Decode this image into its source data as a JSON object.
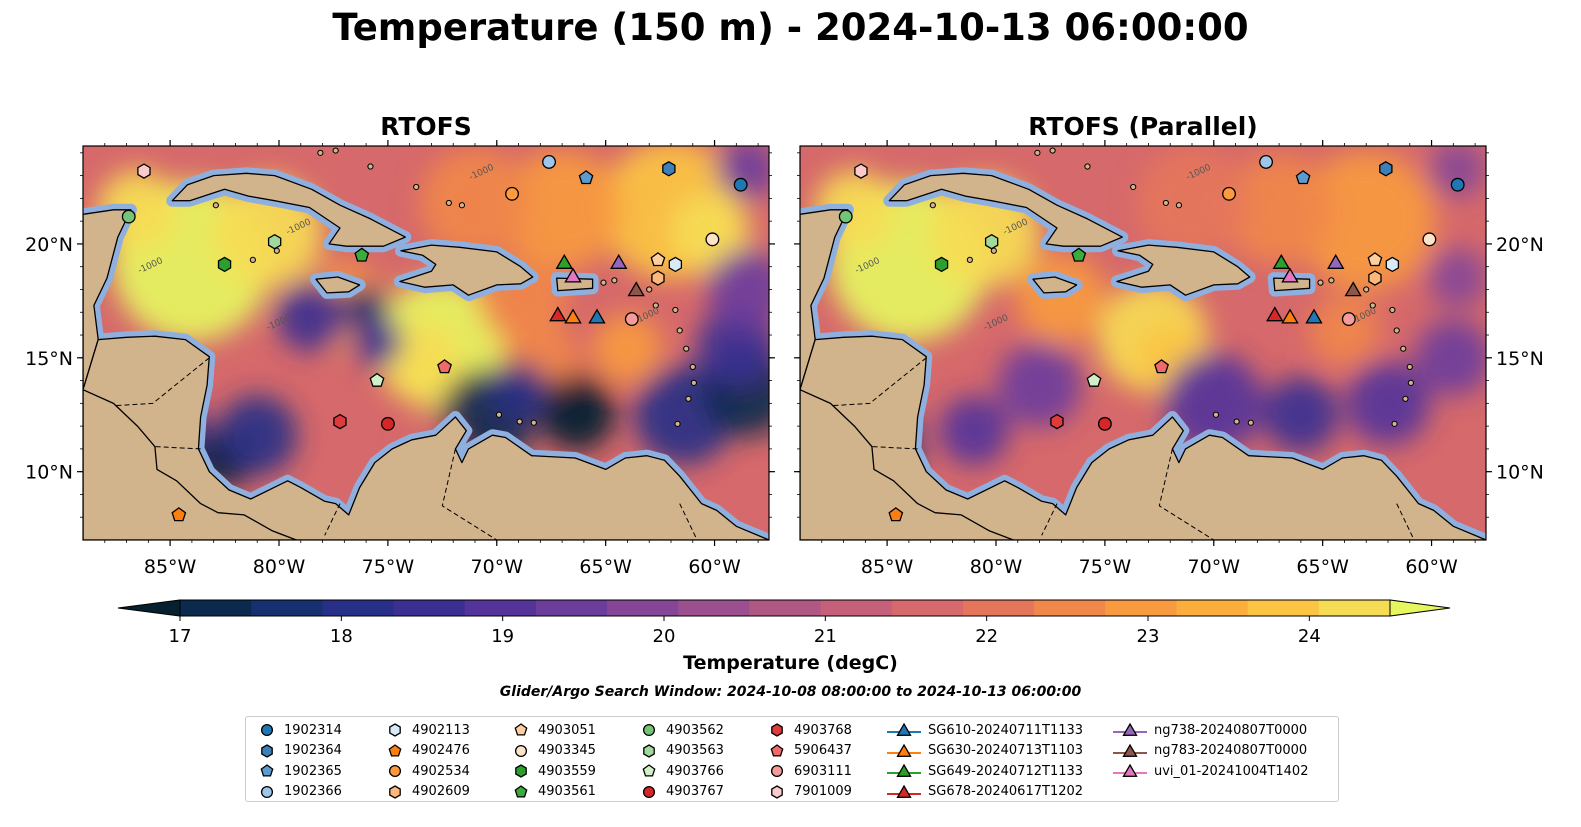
{
  "title": "Temperature (150 m) - 2024-10-13 06:00:00",
  "panels": [
    {
      "title": "RTOFS"
    },
    {
      "title": "RTOFS (Parallel)"
    }
  ],
  "map": {
    "lon_range": [
      -89,
      -57.5
    ],
    "lat_range": [
      7,
      24.3
    ],
    "lon_ticks": [
      "85°W",
      "80°W",
      "75°W",
      "70°W",
      "65°W",
      "60°W"
    ],
    "lon_tick_values": [
      -85,
      -80,
      -75,
      -70,
      -65,
      -60
    ],
    "lat_ticks": [
      "20°N",
      "15°N",
      "10°N"
    ],
    "lat_tick_values": [
      20,
      15,
      10
    ],
    "contour_label": "-1000",
    "land_color": "#d2b48c",
    "shelf_color": "#8fb0de"
  },
  "colorbar": {
    "label": "Temperature (degC)",
    "ticks": [
      "17",
      "18",
      "19",
      "20",
      "21",
      "22",
      "23",
      "24"
    ],
    "min": 17,
    "max": 24.5,
    "colors": [
      "#06202f",
      "#0b2a4e",
      "#17306f",
      "#272f86",
      "#3b2f92",
      "#55349a",
      "#6d3d9c",
      "#854697",
      "#9b4f8f",
      "#b05884",
      "#c4607a",
      "#d6696b",
      "#e5765b",
      "#f0874b",
      "#f79a40",
      "#fbae3c",
      "#fbc443",
      "#f6dc55",
      "#e6f65e"
    ]
  },
  "search_window": "Glider/Argo Search Window: 2024-10-08 08:00:00 to 2024-10-13 06:00:00",
  "legend": [
    {
      "label": "1902314",
      "marker": "circle",
      "color": "#1f77b4"
    },
    {
      "label": "1902364",
      "marker": "hexagon",
      "color": "#3d7fb8"
    },
    {
      "label": "1902365",
      "marker": "pentagon",
      "color": "#5b9bd0"
    },
    {
      "label": "1902366",
      "marker": "circle",
      "color": "#9ec6e8"
    },
    {
      "label": "4902113",
      "marker": "hexagon",
      "color": "#d8e9f7"
    },
    {
      "label": "4902476",
      "marker": "pentagon",
      "color": "#ff7f0e"
    },
    {
      "label": "4902534",
      "marker": "circle",
      "color": "#fd9a3c"
    },
    {
      "label": "4902609",
      "marker": "hexagon",
      "color": "#fdb77a"
    },
    {
      "label": "4903051",
      "marker": "pentagon",
      "color": "#fdcf9f"
    },
    {
      "label": "4903345",
      "marker": "circle",
      "color": "#fde3c8"
    },
    {
      "label": "4903559",
      "marker": "hexagon",
      "color": "#2ca02c"
    },
    {
      "label": "4903561",
      "marker": "pentagon",
      "color": "#3bab3b"
    },
    {
      "label": "4903562",
      "marker": "circle",
      "color": "#74c476"
    },
    {
      "label": "4903563",
      "marker": "hexagon",
      "color": "#a1d99b"
    },
    {
      "label": "4903766",
      "marker": "pentagon",
      "color": "#d0f0c8"
    },
    {
      "label": "4903767",
      "marker": "circle",
      "color": "#d62728"
    },
    {
      "label": "4903768",
      "marker": "hexagon",
      "color": "#e03b3c"
    },
    {
      "label": "5906437",
      "marker": "pentagon",
      "color": "#f06a6a"
    },
    {
      "label": "6903111",
      "marker": "circle",
      "color": "#f49b9b"
    },
    {
      "label": "7901009",
      "marker": "hexagon",
      "color": "#fbcaca"
    },
    {
      "label": "SG610-20240711T1133",
      "marker": "triangle",
      "color": "#1f77b4"
    },
    {
      "label": "SG630-20240713T1103",
      "marker": "triangle",
      "color": "#ff7f0e"
    },
    {
      "label": "SG649-20240712T1133",
      "marker": "triangle",
      "color": "#2ca02c"
    },
    {
      "label": "SG678-20240617T1202",
      "marker": "triangle",
      "color": "#d62728"
    },
    {
      "label": "ng738-20240807T0000",
      "marker": "triangle",
      "color": "#9467bd"
    },
    {
      "label": "ng783-20240807T0000",
      "marker": "triangle",
      "color": "#8c564b"
    },
    {
      "label": "uvi_01-20241004T1402",
      "marker": "triangle",
      "color": "#e377c2"
    }
  ],
  "platforms": [
    {
      "id": "1902314",
      "lon": -58.8,
      "lat": 22.6
    },
    {
      "id": "1902364",
      "lon": -62.1,
      "lat": 23.3
    },
    {
      "id": "1902365",
      "lon": -65.9,
      "lat": 22.9
    },
    {
      "id": "1902366",
      "lon": -67.6,
      "lat": 23.6
    },
    {
      "id": "4902113",
      "lon": -61.8,
      "lat": 19.1
    },
    {
      "id": "4902476",
      "lon": -84.6,
      "lat": 8.1
    },
    {
      "id": "4902534",
      "lon": -69.3,
      "lat": 22.2
    },
    {
      "id": "4902609",
      "lon": -62.6,
      "lat": 18.5
    },
    {
      "id": "4903051",
      "lon": -62.6,
      "lat": 19.3
    },
    {
      "id": "4903345",
      "lon": -60.1,
      "lat": 20.2
    },
    {
      "id": "4903559",
      "lon": -82.5,
      "lat": 19.1
    },
    {
      "id": "4903561",
      "lon": -76.2,
      "lat": 19.5
    },
    {
      "id": "4903562",
      "lon": -86.9,
      "lat": 21.2
    },
    {
      "id": "4903563",
      "lon": -80.2,
      "lat": 20.1
    },
    {
      "id": "4903766",
      "lon": -75.5,
      "lat": 14.0
    },
    {
      "id": "4903767",
      "lon": -75.0,
      "lat": 12.1
    },
    {
      "id": "4903768",
      "lon": -77.2,
      "lat": 12.2
    },
    {
      "id": "5906437",
      "lon": -72.4,
      "lat": 14.6
    },
    {
      "id": "6903111",
      "lon": -63.8,
      "lat": 16.7
    },
    {
      "id": "7901009",
      "lon": -86.2,
      "lat": 23.2
    },
    {
      "id": "SG610-20240711T1133",
      "lon": -65.4,
      "lat": 16.8
    },
    {
      "id": "SG630-20240713T1103",
      "lon": -66.5,
      "lat": 16.8
    },
    {
      "id": "SG649-20240712T1133",
      "lon": -66.9,
      "lat": 19.2
    },
    {
      "id": "SG678-20240617T1202",
      "lon": -67.2,
      "lat": 16.9
    },
    {
      "id": "ng738-20240807T0000",
      "lon": -64.4,
      "lat": 19.2
    },
    {
      "id": "ng783-20240807T0000",
      "lon": -63.6,
      "lat": 18.0
    },
    {
      "id": "uvi_01-20241004T1402",
      "lon": -66.5,
      "lat": 18.6
    }
  ]
}
